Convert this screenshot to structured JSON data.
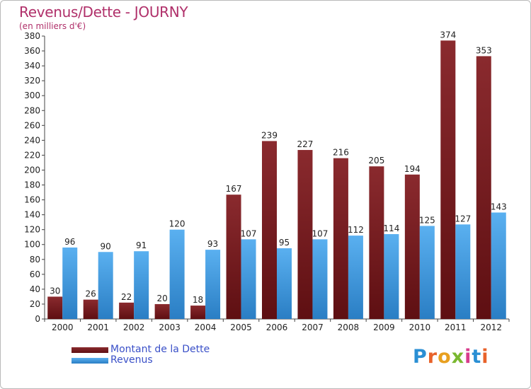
{
  "header": {
    "title": "Revenus/Dette - JOURNY",
    "subtitle": "(en milliers d'€)"
  },
  "legend": {
    "debt_label": "Montant de la Dette",
    "revenue_label": "Revenus"
  },
  "logo": {
    "text": "Proxiti",
    "letters": [
      "P",
      "r",
      "o",
      "x",
      "i",
      "t",
      "i"
    ],
    "colors": [
      "#2a8fd4",
      "#e8622a",
      "#e8a020",
      "#7ab830",
      "#d83c8c",
      "#2a8fd4",
      "#e8622a"
    ]
  },
  "colors": {
    "debt": "#7a1e22",
    "revenue": "#3f9fe6",
    "title": "#b0306a"
  },
  "chart_data": {
    "type": "bar",
    "categories": [
      "2000",
      "2001",
      "2002",
      "2003",
      "2004",
      "2005",
      "2006",
      "2007",
      "2008",
      "2009",
      "2010",
      "2011",
      "2012"
    ],
    "series": [
      {
        "name": "Montant de la Dette",
        "values": [
          30,
          26,
          22,
          20,
          18,
          167,
          239,
          227,
          216,
          205,
          194,
          374,
          353
        ]
      },
      {
        "name": "Revenus",
        "values": [
          96,
          90,
          91,
          120,
          93,
          107,
          95,
          107,
          112,
          114,
          125,
          127,
          143
        ]
      }
    ],
    "title": "Revenus/Dette - JOURNY",
    "subtitle": "(en milliers d'€)",
    "ylim": [
      0,
      380
    ],
    "ytick_step": 20,
    "grid": false,
    "legend_position": "bottom-left"
  }
}
